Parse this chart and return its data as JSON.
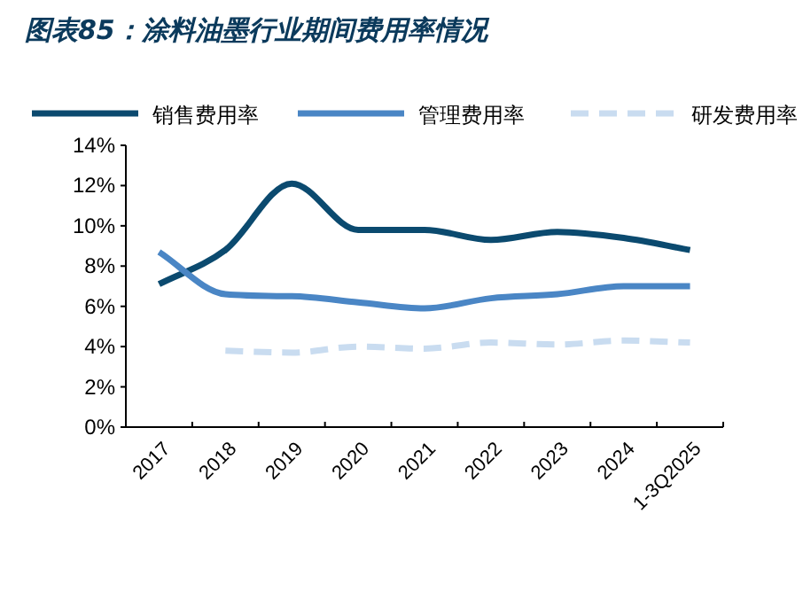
{
  "chart_data": {
    "type": "line",
    "title": "图表85：涂料油墨行业期间费用率情况",
    "categories": [
      "2017",
      "2018",
      "2019",
      "2020",
      "2021",
      "2022",
      "2023",
      "2024",
      "1-3Q2025"
    ],
    "series": [
      {
        "name": "销售费用率",
        "color": "#0b4a6f",
        "line_style": "solid",
        "values": [
          7.1,
          8.8,
          12.1,
          9.8,
          9.8,
          9.3,
          9.7,
          9.4,
          8.8
        ]
      },
      {
        "name": "管理费用率",
        "color": "#4a86c5",
        "line_style": "solid",
        "values": [
          8.7,
          6.6,
          6.5,
          6.2,
          5.9,
          6.4,
          6.6,
          7.0,
          7.0
        ]
      },
      {
        "name": "研发费用率",
        "color": "#c9dcf0",
        "line_style": "dashed",
        "values": [
          null,
          3.8,
          3.7,
          4.0,
          3.9,
          4.2,
          4.1,
          4.3,
          4.2
        ]
      }
    ],
    "ylim": [
      0,
      14
    ],
    "yticks": [
      {
        "value": 0,
        "label": "0%"
      },
      {
        "value": 2,
        "label": "2%"
      },
      {
        "value": 4,
        "label": "4%"
      },
      {
        "value": 6,
        "label": "6%"
      },
      {
        "value": 8,
        "label": "8%"
      },
      {
        "value": 10,
        "label": "10%"
      },
      {
        "value": 12,
        "label": "12%"
      },
      {
        "value": 14,
        "label": "14%"
      }
    ],
    "legend": "top",
    "grid": false,
    "marker": "none"
  }
}
